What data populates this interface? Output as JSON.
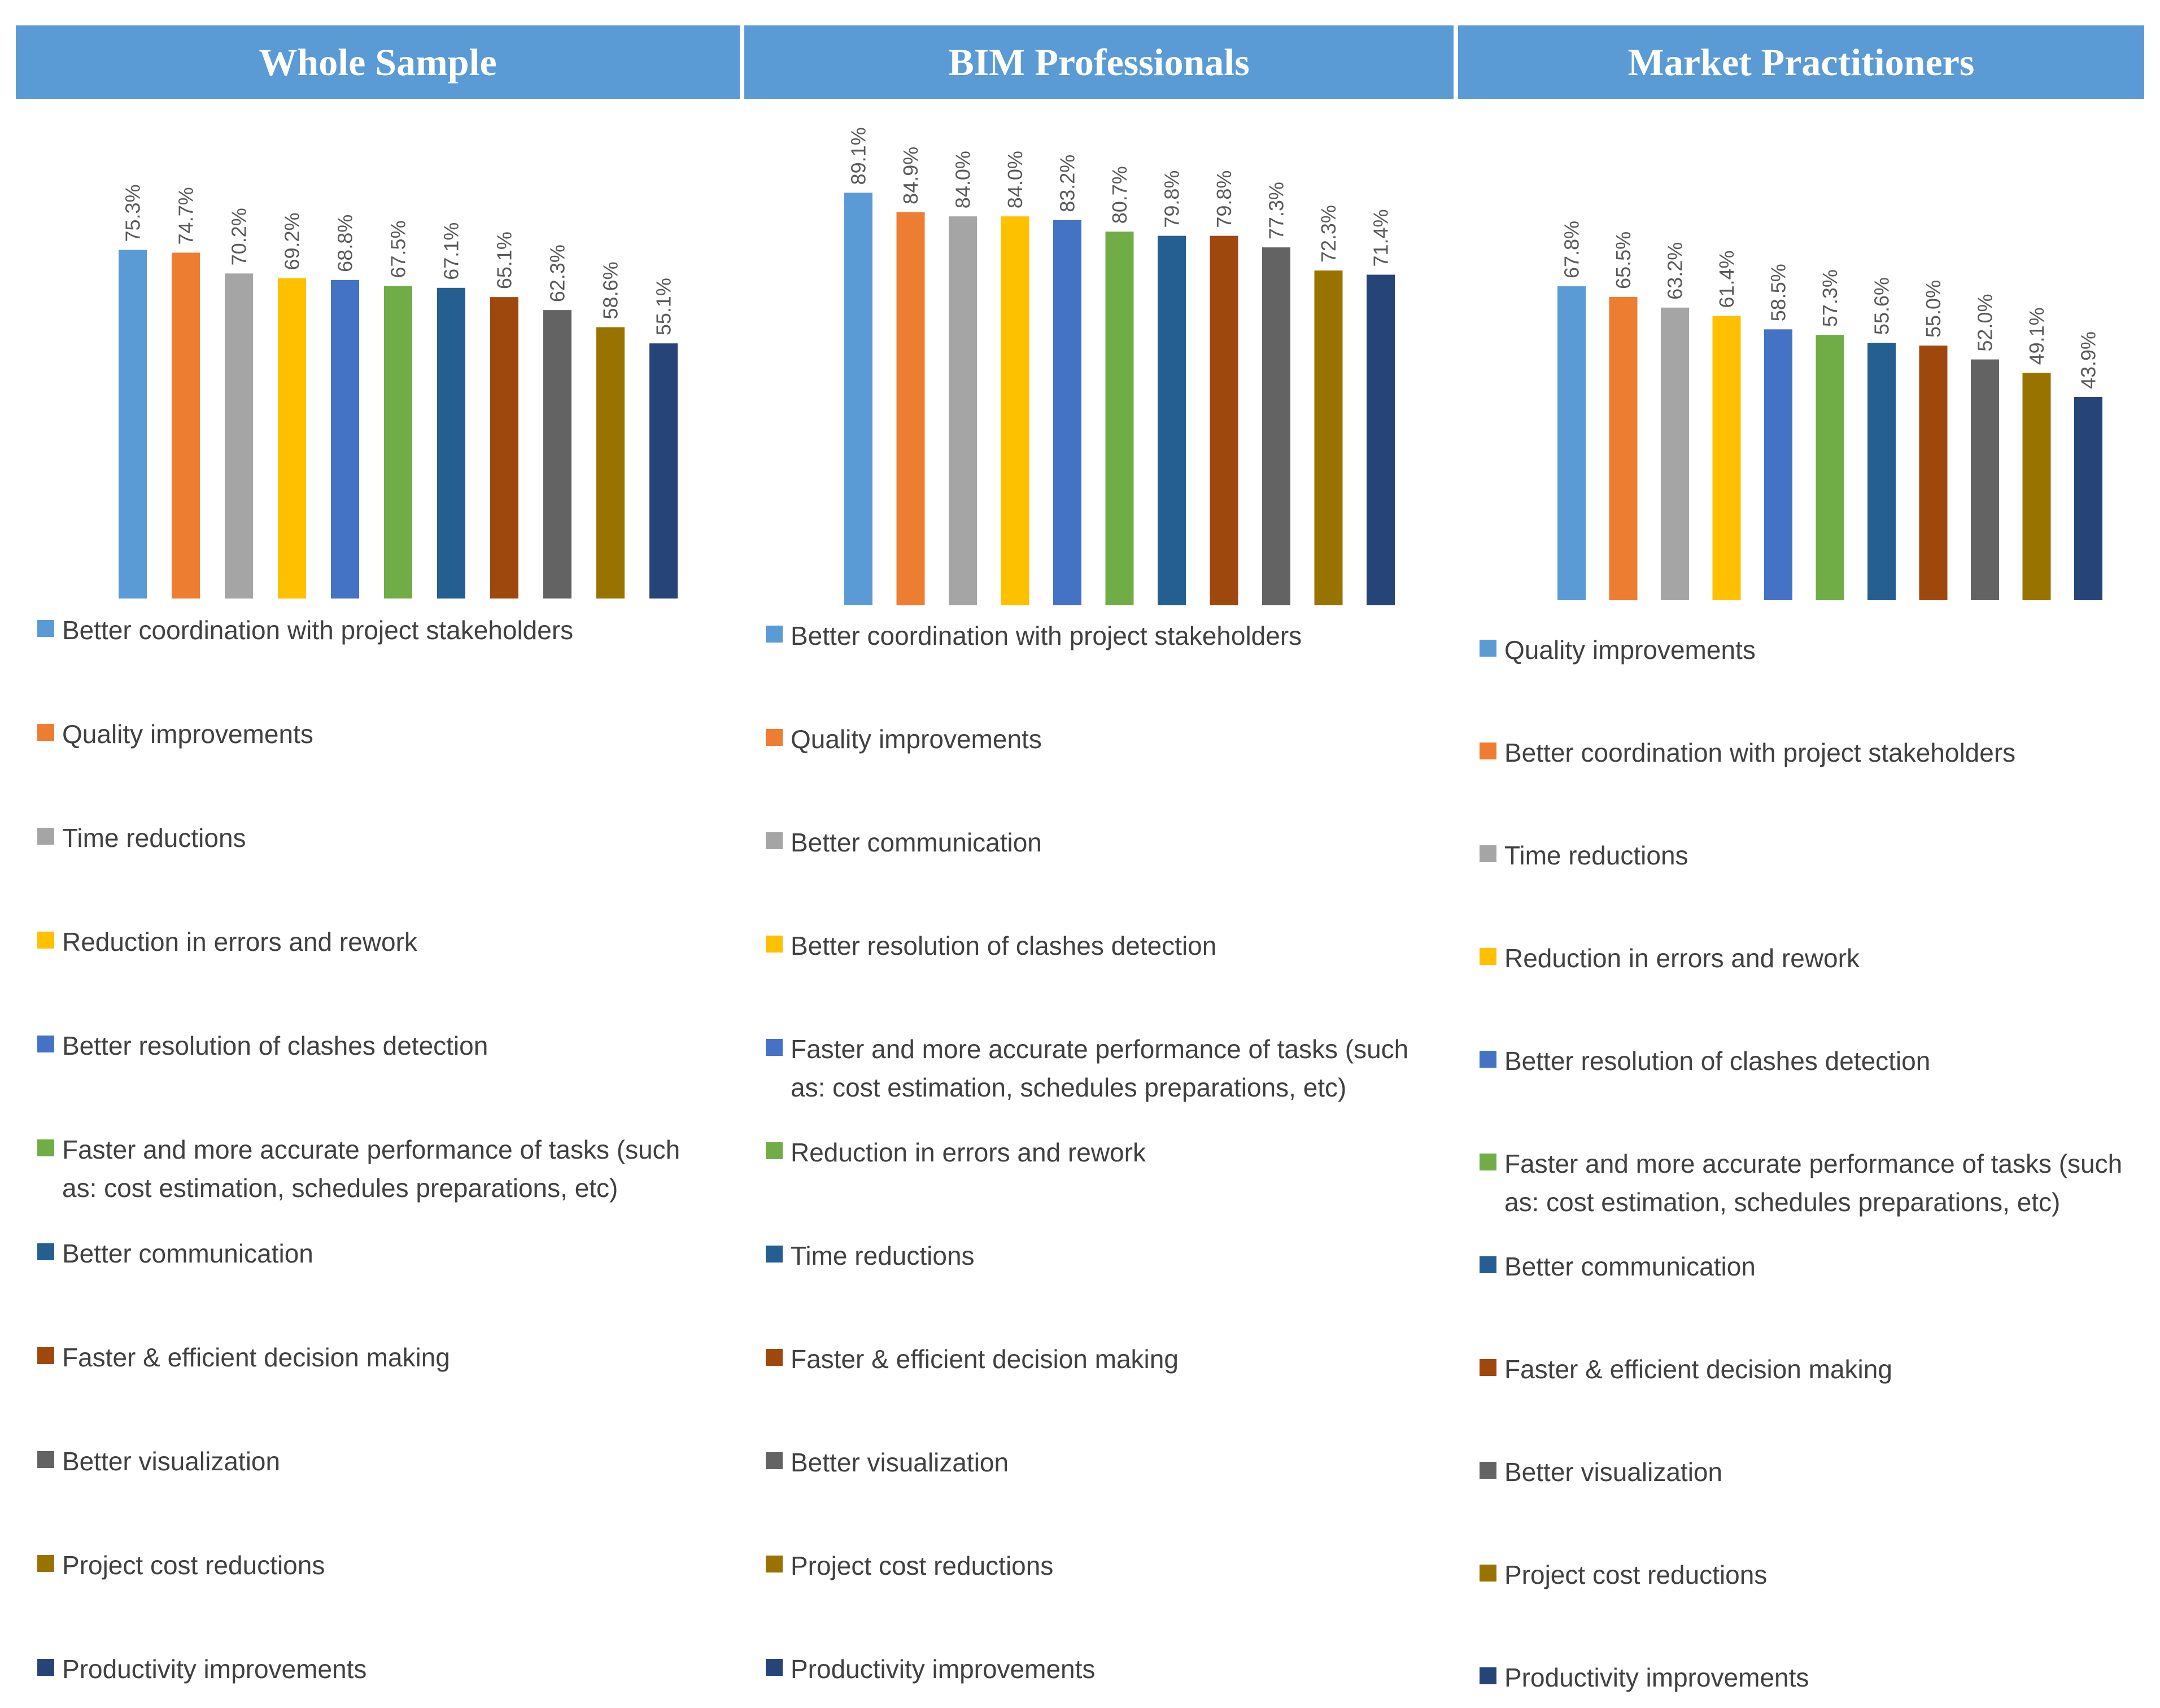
{
  "colors": [
    "#5b9bd5",
    "#ed7d31",
    "#a5a5a5",
    "#ffc000",
    "#4472c4",
    "#70ad47",
    "#255e91",
    "#9e480e",
    "#636363",
    "#997300",
    "#264478"
  ],
  "chart_data": [
    {
      "type": "bar",
      "title": "Whole Sample",
      "categories": [
        "Better coordination with project stakeholders",
        "Quality improvements",
        "Time reductions",
        "Reduction in errors and rework",
        "Better resolution of clashes detection",
        "Faster and more accurate performance of tasks (such as: cost estimation, schedules preparations, etc)",
        "Better communication",
        "Faster & efficient decision making",
        "Better visualization",
        "Project cost reductions",
        "Productivity improvements"
      ],
      "values": [
        75.3,
        74.7,
        70.2,
        69.2,
        68.8,
        67.5,
        67.1,
        65.1,
        62.3,
        58.6,
        55.1
      ],
      "labels": [
        "75.3%",
        "74.7%",
        "70.2%",
        "69.2%",
        "68.8%",
        "67.5%",
        "67.1%",
        "65.1%",
        "62.3%",
        "58.6%",
        "55.1%"
      ],
      "ylim": [
        0,
        100
      ],
      "legend": "bottom"
    },
    {
      "type": "bar",
      "title": "BIM Professionals",
      "categories": [
        "Better coordination with project stakeholders",
        "Quality improvements",
        "Better communication",
        "Better resolution of clashes detection",
        "Faster and more accurate performance of tasks (such as: cost estimation, schedules preparations, etc)",
        "Reduction in errors and rework",
        "Time reductions",
        "Faster & efficient decision making",
        "Better visualization",
        "Project cost reductions",
        "Productivity improvements"
      ],
      "values": [
        89.1,
        84.9,
        84.0,
        84.0,
        83.2,
        80.7,
        79.8,
        79.8,
        77.3,
        72.3,
        71.4
      ],
      "labels": [
        "89.1%",
        "84.9%",
        "84.0%",
        "84.0%",
        "83.2%",
        "80.7%",
        "79.8%",
        "79.8%",
        "77.3%",
        "72.3%",
        "71.4%"
      ],
      "ylim": [
        0,
        100
      ],
      "legend": "bottom"
    },
    {
      "type": "bar",
      "title": "Market Practitioners",
      "categories": [
        "Quality improvements",
        "Better coordination with project stakeholders",
        "Time reductions",
        "Reduction in errors and rework",
        "Better resolution of clashes detection",
        "Faster and more accurate performance of tasks (such as: cost estimation, schedules preparations, etc)",
        "Better communication",
        "Faster & efficient decision making",
        "Better visualization",
        "Project cost reductions",
        "Productivity improvements"
      ],
      "values": [
        67.8,
        65.5,
        63.2,
        61.4,
        58.5,
        57.3,
        55.6,
        55.0,
        52.0,
        49.1,
        43.9
      ],
      "labels": [
        "67.8%",
        "65.5%",
        "63.2%",
        "61.4%",
        "58.5%",
        "57.3%",
        "55.6%",
        "55.0%",
        "52.0%",
        "49.1%",
        "43.9%"
      ],
      "ylim": [
        0,
        100
      ],
      "legend": "bottom"
    }
  ]
}
